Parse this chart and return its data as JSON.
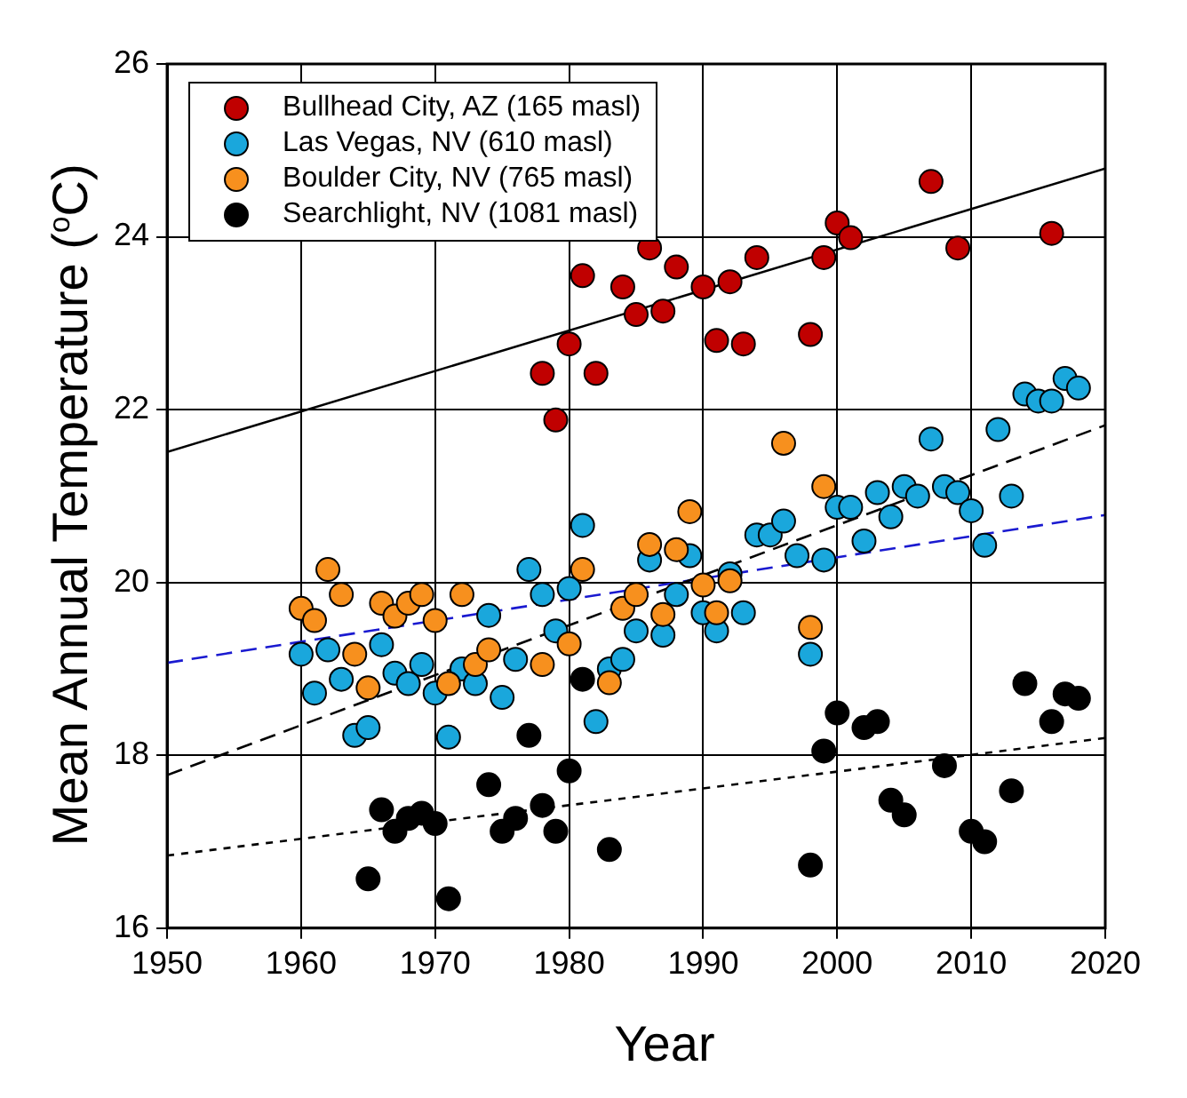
{
  "chart_data": {
    "type": "scatter",
    "xlabel": "Year",
    "ylabel": "Mean Annual Temperature ($^{o}$C)",
    "xlim": [
      1950,
      2020
    ],
    "ylim": [
      16,
      26
    ],
    "xticks": [
      1950,
      1960,
      1970,
      1980,
      1990,
      2000,
      2010,
      2020
    ],
    "yticks": [
      16,
      18,
      20,
      22,
      24,
      26
    ],
    "grid": true,
    "legend": "top left",
    "marker": "circle",
    "series": [
      {
        "name": "Bullhead City, AZ (165 masl)",
        "color": "#c00000",
        "x": [
          1978,
          1979,
          1980,
          1981,
          1982,
          1984,
          1985,
          1986,
          1987,
          1988,
          1990,
          1991,
          1992,
          1993,
          1994,
          1998,
          1999,
          2000,
          2001,
          2007,
          2009,
          2016
        ],
        "values": [
          22.42,
          21.88,
          22.76,
          23.55,
          22.42,
          23.42,
          23.1,
          23.87,
          23.14,
          23.65,
          23.42,
          22.8,
          23.48,
          22.76,
          23.76,
          22.87,
          23.76,
          24.16,
          23.99,
          24.64,
          23.87,
          24.04
        ]
      },
      {
        "name": "Las Vegas, NV (610 masl)",
        "color": "#1aa7dc",
        "x": [
          1960,
          1961,
          1962,
          1963,
          1964,
          1965,
          1966,
          1967,
          1968,
          1969,
          1970,
          1971,
          1972,
          1973,
          1974,
          1975,
          1976,
          1977,
          1978,
          1979,
          1980,
          1981,
          1982,
          1983,
          1984,
          1985,
          1986,
          1987,
          1988,
          1989,
          1990,
          1991,
          1992,
          1993,
          1994,
          1995,
          1996,
          1997,
          1998,
          1999,
          2000,
          2001,
          2002,
          2003,
          2004,
          2005,
          2006,
          2007,
          2008,
          2009,
          2010,
          2011,
          2012,
          2013,
          2014,
          2015,
          2016,
          2017,
          2018
        ],
        "values": [
          19.17,
          18.72,
          19.22,
          18.88,
          18.23,
          18.32,
          19.28,
          18.95,
          18.83,
          19.05,
          18.72,
          18.21,
          19.0,
          18.83,
          19.62,
          18.67,
          19.11,
          20.15,
          19.86,
          19.44,
          19.93,
          20.66,
          18.39,
          19.0,
          19.11,
          19.44,
          20.26,
          19.39,
          19.86,
          20.31,
          19.65,
          19.44,
          20.1,
          19.65,
          20.55,
          20.55,
          20.71,
          20.31,
          19.17,
          20.26,
          20.87,
          20.87,
          20.48,
          21.04,
          20.76,
          21.11,
          21.0,
          21.66,
          21.11,
          21.04,
          20.83,
          20.43,
          21.77,
          21.0,
          22.18,
          22.1,
          22.1,
          22.36,
          22.25
        ]
      },
      {
        "name": "Boulder City, NV (765 masl)",
        "color": "#f7901e",
        "x": [
          1960,
          1961,
          1962,
          1963,
          1964,
          1965,
          1966,
          1967,
          1968,
          1969,
          1970,
          1971,
          1972,
          1973,
          1974,
          1978,
          1980,
          1981,
          1983,
          1984,
          1985,
          1986,
          1987,
          1988,
          1989,
          1990,
          1991,
          1992,
          1996,
          1998,
          1999
        ],
        "values": [
          19.7,
          19.56,
          20.15,
          19.86,
          19.17,
          18.78,
          19.76,
          19.61,
          19.76,
          19.86,
          19.56,
          18.83,
          19.86,
          19.05,
          19.22,
          19.05,
          19.29,
          20.15,
          18.84,
          19.7,
          19.86,
          20.44,
          19.63,
          20.38,
          20.82,
          19.97,
          19.65,
          20.02,
          21.61,
          19.48,
          21.11
        ]
      },
      {
        "name": "Searchlight, NV (1081 masl)",
        "color": "#000000",
        "x": [
          1965,
          1966,
          1967,
          1968,
          1969,
          1970,
          1971,
          1974,
          1975,
          1976,
          1977,
          1978,
          1979,
          1980,
          1981,
          1983,
          1998,
          1999,
          2000,
          2002,
          2003,
          2004,
          2005,
          2008,
          2010,
          2011,
          2013,
          2014,
          2016,
          2017,
          2018
        ],
        "values": [
          16.57,
          17.37,
          17.12,
          17.27,
          17.33,
          17.21,
          16.34,
          17.66,
          17.12,
          17.27,
          18.23,
          17.42,
          17.12,
          17.82,
          18.88,
          16.91,
          16.73,
          18.05,
          18.49,
          18.32,
          18.39,
          17.48,
          17.31,
          17.88,
          17.12,
          17.0,
          17.59,
          18.83,
          18.39,
          18.71,
          18.66
        ]
      },
      {
        "type": "line",
        "color": "#000000",
        "line_style": "solid",
        "marker": "none",
        "x": [
          1950,
          2020
        ],
        "values": [
          21.51,
          24.79
        ]
      },
      {
        "type": "line",
        "color": "#000000",
        "line_style": "dashed",
        "marker": "none",
        "x": [
          1950,
          2020
        ],
        "values": [
          17.77,
          21.82
        ]
      },
      {
        "type": "line",
        "color": "#1a1ad0",
        "line_style": "dashed",
        "marker": "none",
        "x": [
          1950,
          2020
        ],
        "values": [
          19.07,
          20.78
        ]
      },
      {
        "type": "line",
        "color": "#000000",
        "line_style": "dotted",
        "marker": "none",
        "x": [
          1950,
          2020
        ],
        "values": [
          16.84,
          18.2
        ]
      }
    ]
  }
}
